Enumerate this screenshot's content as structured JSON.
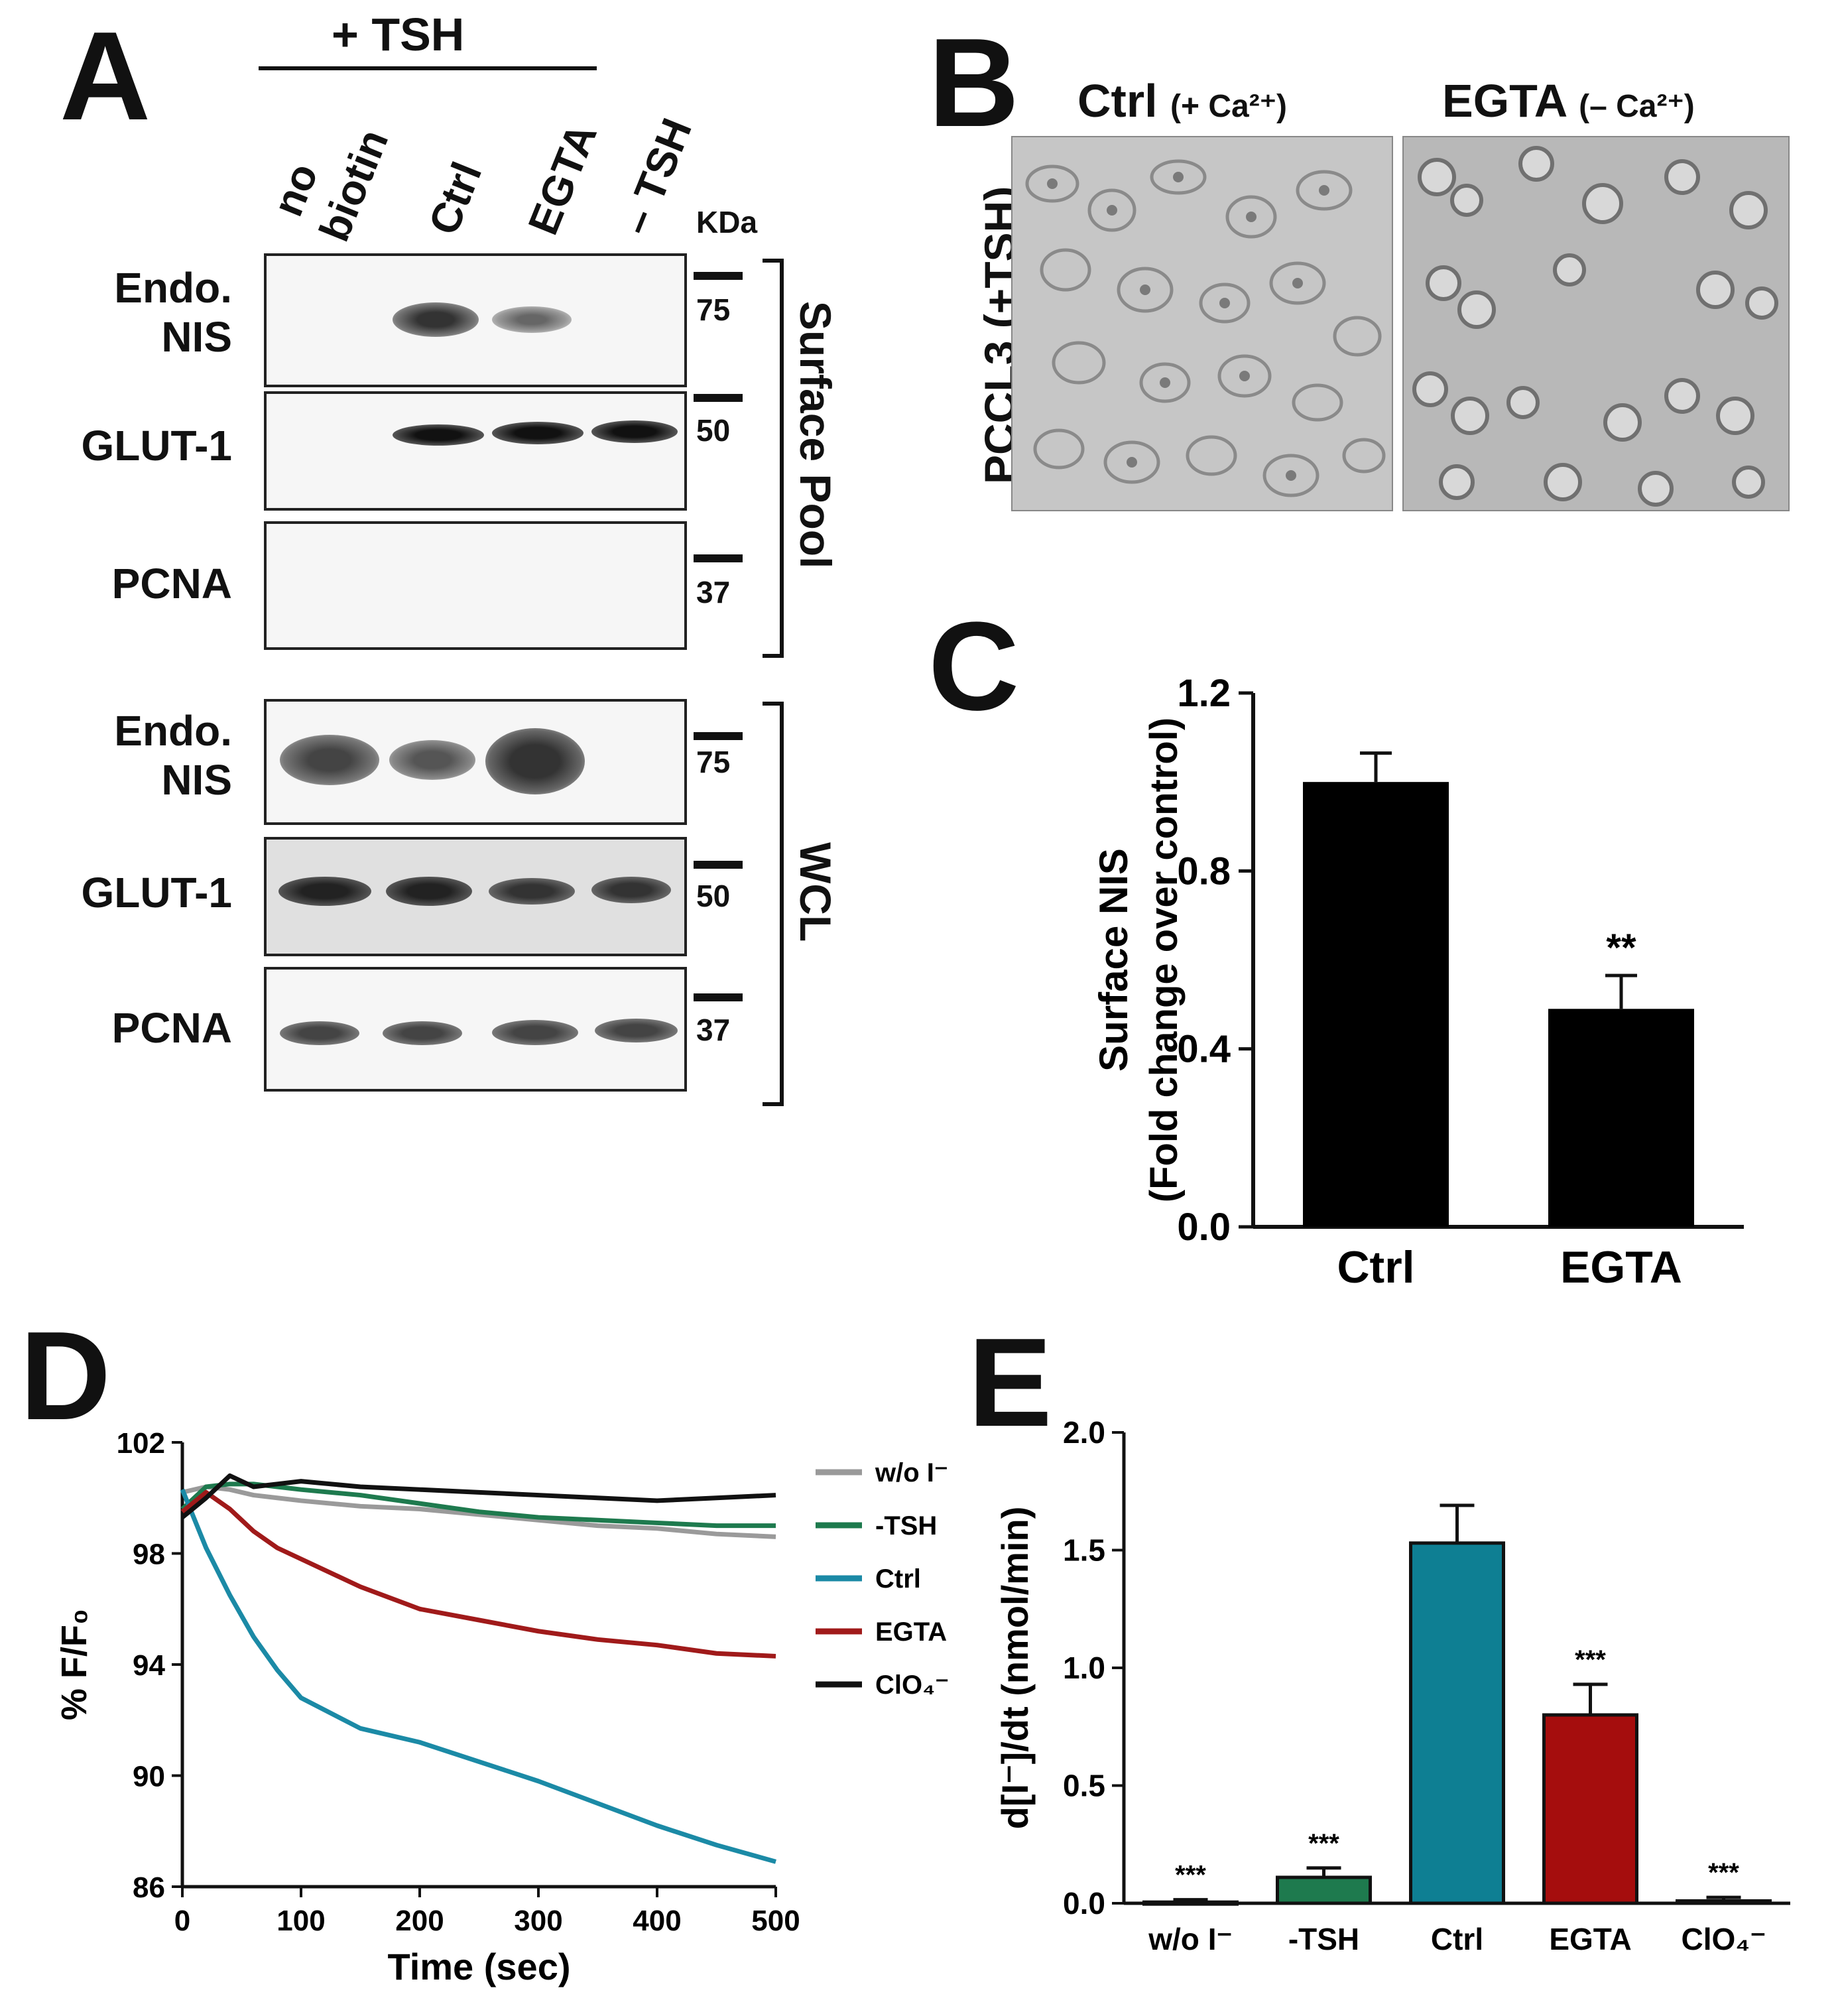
{
  "panels": {
    "a": {
      "letter": "A",
      "treatment_header": "+ TSH",
      "lanes": [
        "no biotin",
        "Ctrl",
        "EGTA",
        "– TSH"
      ],
      "lane_no": "no",
      "lane_biotin": "biotin",
      "lane_minus": "/",
      "kda_label": "KDa",
      "surface_rows": [
        "Endo.\nNIS",
        "GLUT-1",
        "PCNA"
      ],
      "wcl_rows": [
        "Endo.\nNIS",
        "GLUT-1",
        "PCNA"
      ],
      "markers": [
        "75",
        "50",
        "37"
      ],
      "surface_group": "Surface Pool",
      "wcl_group": "WCL"
    },
    "b": {
      "letter": "B",
      "ctrl_title": "Ctrl",
      "ctrl_sub": "(+ Ca²⁺)",
      "egta_title": "EGTA",
      "egta_sub": "(– Ca²⁺)",
      "side_label": "PCCL3 (+TSH)"
    },
    "c": {
      "letter": "C"
    },
    "d": {
      "letter": "D"
    },
    "e": {
      "letter": "E"
    }
  },
  "chart_data": [
    {
      "id": "C",
      "type": "bar",
      "categories": [
        "Ctrl",
        "EGTA"
      ],
      "values": [
        1.0,
        0.49
      ],
      "errors": [
        0.065,
        0.075
      ],
      "significance": [
        "",
        "**"
      ],
      "ylabel_line1": "Surface NIS",
      "ylabel_line2": "(Fold change over control)",
      "ylim": [
        0,
        1.2
      ],
      "yticks": [
        "0.0",
        "0.4",
        "0.8",
        "1.2"
      ],
      "colors": [
        "#000000",
        "#000000"
      ]
    },
    {
      "id": "D",
      "type": "line",
      "xlabel": "Time (sec)",
      "ylabel": "% F/F₀",
      "xlim": [
        0,
        500
      ],
      "ylim": [
        86,
        102
      ],
      "xticks": [
        "0",
        "100",
        "200",
        "300",
        "400",
        "500"
      ],
      "yticks": [
        "86",
        "90",
        "94",
        "98",
        "102"
      ],
      "legend_position": "right",
      "series": [
        {
          "name": "w/o I⁻",
          "color": "#9a9a9a",
          "x": [
            0,
            20,
            40,
            60,
            80,
            100,
            150,
            200,
            250,
            300,
            350,
            400,
            450,
            500
          ],
          "y": [
            100.2,
            100.4,
            100.3,
            100.1,
            100.0,
            99.9,
            99.7,
            99.6,
            99.4,
            99.2,
            99.0,
            98.9,
            98.7,
            98.6
          ]
        },
        {
          "name": "-TSH",
          "color": "#1e7a4e",
          "x": [
            0,
            20,
            40,
            60,
            80,
            100,
            150,
            200,
            250,
            300,
            350,
            400,
            450,
            500
          ],
          "y": [
            99.6,
            100.4,
            100.5,
            100.5,
            100.4,
            100.3,
            100.1,
            99.8,
            99.5,
            99.3,
            99.2,
            99.1,
            99.0,
            99.0
          ]
        },
        {
          "name": "Ctrl",
          "color": "#1b8aa6",
          "x": [
            0,
            20,
            40,
            60,
            80,
            100,
            150,
            200,
            250,
            300,
            350,
            400,
            450,
            500
          ],
          "y": [
            100.3,
            98.2,
            96.5,
            95.0,
            93.8,
            92.8,
            91.7,
            91.2,
            90.5,
            89.8,
            89.0,
            88.2,
            87.5,
            86.9
          ]
        },
        {
          "name": "EGTA",
          "color": "#a01a1a",
          "x": [
            0,
            20,
            40,
            60,
            80,
            100,
            150,
            200,
            250,
            300,
            350,
            400,
            450,
            500
          ],
          "y": [
            99.5,
            100.2,
            99.6,
            98.8,
            98.2,
            97.8,
            96.8,
            96.0,
            95.6,
            95.2,
            94.9,
            94.7,
            94.4,
            94.3
          ]
        },
        {
          "name": "ClO₄⁻",
          "color": "#111111",
          "x": [
            0,
            20,
            40,
            60,
            80,
            100,
            150,
            200,
            250,
            300,
            350,
            400,
            450,
            500
          ],
          "y": [
            99.3,
            100.0,
            100.8,
            100.4,
            100.5,
            100.6,
            100.4,
            100.3,
            100.2,
            100.1,
            100.0,
            99.9,
            100.0,
            100.1
          ]
        }
      ]
    },
    {
      "id": "E",
      "type": "bar",
      "categories": [
        "w/o I⁻",
        "-TSH",
        "Ctrl",
        "EGTA",
        "ClO₄⁻"
      ],
      "values": [
        0.005,
        0.11,
        1.53,
        0.8,
        0.01
      ],
      "errors": [
        0.01,
        0.04,
        0.16,
        0.13,
        0.015
      ],
      "significance": [
        "***",
        "***",
        "",
        "***",
        "***"
      ],
      "ylabel": "d[I⁻]/dt (nmol/min)",
      "ylim": [
        0,
        2.0
      ],
      "yticks": [
        "0.0",
        "0.5",
        "1.0",
        "1.5",
        "2.0"
      ],
      "colors": [
        "#000000",
        "#1e7a4e",
        "#0e7f93",
        "#a50d0d",
        "#000000"
      ]
    }
  ]
}
